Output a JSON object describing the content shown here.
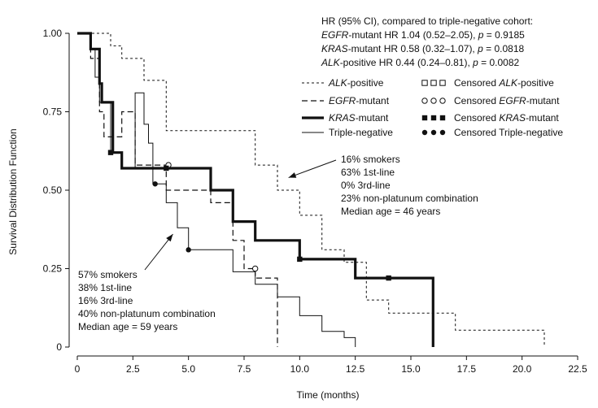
{
  "chart_data": {
    "type": "line",
    "chart_subtype": "kaplan-meier survival curves",
    "xlabel": "Time (months)",
    "ylabel": "Survival Distribution Function",
    "xlim": [
      0,
      22.5
    ],
    "ylim": [
      0,
      1.0
    ],
    "x_ticks": [
      "0",
      "2.5",
      "5.0",
      "7.5",
      "10.0",
      "12.5",
      "15.0",
      "17.5",
      "20.0",
      "22.5"
    ],
    "y_ticks": [
      "0",
      "0.25",
      "0.50",
      "0.75",
      "1.00"
    ],
    "grid": false,
    "legend_placement": "top-right",
    "hr_box": {
      "title": "HR (95% CI), compared to triple-negative cohort:",
      "lines": [
        {
          "italic": "EGFR",
          "rest": "-mutant HR 1.04 (0.52–2.05), ",
          "p": "p",
          "pval": " = 0.9185"
        },
        {
          "italic": "KRAS",
          "rest": "-mutant HR 0.58 (0.32–1.07), ",
          "p": "p",
          "pval": " = 0.0818"
        },
        {
          "italic": "ALK",
          "rest": "-positive HR 0.44 (0.24–0.81), ",
          "p": "p",
          "pval": " = 0.0082"
        }
      ]
    },
    "series": [
      {
        "name": "ALK-positive",
        "name_italic": "ALK",
        "name_rest": "-positive",
        "censor_label_prefix": "Censored ",
        "censor_label_italic": "ALK",
        "censor_label_rest": "-positive",
        "line_style": "dotted",
        "censor_marker": "square-open",
        "points": [
          [
            0,
            1.0
          ],
          [
            1.5,
            1.0
          ],
          [
            1.5,
            0.96
          ],
          [
            2,
            0.96
          ],
          [
            2,
            0.92
          ],
          [
            3,
            0.92
          ],
          [
            3,
            0.85
          ],
          [
            4,
            0.85
          ],
          [
            4,
            0.69
          ],
          [
            8,
            0.69
          ],
          [
            8,
            0.58
          ],
          [
            9,
            0.58
          ],
          [
            9,
            0.5
          ],
          [
            10,
            0.5
          ],
          [
            10,
            0.42
          ],
          [
            11,
            0.42
          ],
          [
            11,
            0.31
          ],
          [
            12,
            0.31
          ],
          [
            12,
            0.27
          ],
          [
            13,
            0.27
          ],
          [
            13,
            0.15
          ],
          [
            14,
            0.15
          ],
          [
            14,
            0.108
          ],
          [
            17,
            0.108
          ],
          [
            17,
            0.054
          ],
          [
            21,
            0.054
          ],
          [
            21,
            0
          ]
        ],
        "censors": []
      },
      {
        "name": "EGFR-mutant",
        "name_italic": "EGFR",
        "name_rest": "-mutant",
        "censor_label_prefix": "Censored ",
        "censor_label_italic": "EGFR",
        "censor_label_rest": "-mutant",
        "line_style": "dashed",
        "censor_marker": "circle-open",
        "points": [
          [
            0,
            1.0
          ],
          [
            0.6,
            1.0
          ],
          [
            0.6,
            0.92
          ],
          [
            1,
            0.92
          ],
          [
            1,
            0.75
          ],
          [
            1.2,
            0.75
          ],
          [
            1.2,
            0.67
          ],
          [
            2,
            0.67
          ],
          [
            2,
            0.75
          ],
          [
            2.6,
            0.75
          ],
          [
            2.6,
            0.58
          ],
          [
            4,
            0.58
          ],
          [
            4,
            0.5
          ],
          [
            6,
            0.5
          ],
          [
            6,
            0.46
          ],
          [
            7,
            0.46
          ],
          [
            7,
            0.34
          ],
          [
            7.5,
            0.34
          ],
          [
            7.5,
            0.25
          ],
          [
            8,
            0.25
          ],
          [
            8,
            0.22
          ],
          [
            9,
            0.22
          ],
          [
            9,
            0
          ]
        ],
        "censors": [
          [
            4.1,
            0.58
          ],
          [
            8,
            0.25
          ]
        ]
      },
      {
        "name": "KRAS-mutant",
        "name_italic": "KRAS",
        "name_rest": "-mutant",
        "censor_label_prefix": "Censored ",
        "censor_label_italic": "KRAS",
        "censor_label_rest": "-mutant",
        "line_style": "thick",
        "censor_marker": "square-filled",
        "points": [
          [
            0,
            1.0
          ],
          [
            0.6,
            1.0
          ],
          [
            0.6,
            0.95
          ],
          [
            1,
            0.95
          ],
          [
            1,
            0.84
          ],
          [
            1.1,
            0.84
          ],
          [
            1.1,
            0.78
          ],
          [
            1.6,
            0.78
          ],
          [
            1.6,
            0.62
          ],
          [
            2,
            0.62
          ],
          [
            2,
            0.57
          ],
          [
            6,
            0.57
          ],
          [
            6,
            0.5
          ],
          [
            7,
            0.5
          ],
          [
            7,
            0.4
          ],
          [
            8,
            0.4
          ],
          [
            8,
            0.34
          ],
          [
            10,
            0.34
          ],
          [
            10,
            0.28
          ],
          [
            12.5,
            0.28
          ],
          [
            12.5,
            0.22
          ],
          [
            16,
            0.22
          ],
          [
            16,
            0
          ]
        ],
        "censors": [
          [
            1.5,
            0.62
          ],
          [
            4,
            0.57
          ],
          [
            10,
            0.28
          ],
          [
            14,
            0.22
          ]
        ]
      },
      {
        "name": "Triple-negative",
        "name_italic": "",
        "name_rest": "Triple-negative",
        "censor_label_prefix": "Censored ",
        "censor_label_italic": "",
        "censor_label_rest": "Triple-negative",
        "line_style": "thin",
        "censor_marker": "circle-filled",
        "points": [
          [
            0,
            1.0
          ],
          [
            0.6,
            1.0
          ],
          [
            0.6,
            0.95
          ],
          [
            0.8,
            0.95
          ],
          [
            0.8,
            0.86
          ],
          [
            1,
            0.86
          ],
          [
            1,
            0.78
          ],
          [
            1.5,
            0.78
          ],
          [
            1.5,
            0.62
          ],
          [
            2,
            0.62
          ],
          [
            2,
            0.57
          ],
          [
            2.6,
            0.57
          ],
          [
            2.6,
            0.81
          ],
          [
            3,
            0.81
          ],
          [
            3,
            0.71
          ],
          [
            3.2,
            0.71
          ],
          [
            3.2,
            0.65
          ],
          [
            3.4,
            0.65
          ],
          [
            3.4,
            0.52
          ],
          [
            4,
            0.52
          ],
          [
            4,
            0.46
          ],
          [
            4.5,
            0.46
          ],
          [
            4.5,
            0.38
          ],
          [
            5,
            0.38
          ],
          [
            5,
            0.31
          ],
          [
            7,
            0.31
          ],
          [
            7,
            0.24
          ],
          [
            8,
            0.24
          ],
          [
            8,
            0.2
          ],
          [
            9,
            0.2
          ],
          [
            9,
            0.16
          ],
          [
            10,
            0.16
          ],
          [
            10,
            0.1
          ],
          [
            11,
            0.1
          ],
          [
            11,
            0.05
          ],
          [
            12,
            0.05
          ],
          [
            12,
            0.03
          ],
          [
            12.5,
            0.03
          ],
          [
            12.5,
            0
          ]
        ],
        "censors": [
          [
            3.5,
            0.52
          ],
          [
            5,
            0.31
          ]
        ]
      }
    ],
    "annotations": [
      {
        "id": "alk-annotation",
        "lines": [
          "16% smokers",
          "63% 1st-line",
          "0% 3rd-line",
          "23% non-platunum combination",
          "Median age = 46 years"
        ],
        "arrow_to": [
          9.5,
          0.54
        ]
      },
      {
        "id": "triple-negative-annotation",
        "lines": [
          "57% smokers",
          "38% 1st-line",
          "16% 3rd-line",
          "40% non-platunum combination",
          "Median age = 59 years"
        ],
        "arrow_to": [
          4.3,
          0.36
        ]
      }
    ]
  }
}
